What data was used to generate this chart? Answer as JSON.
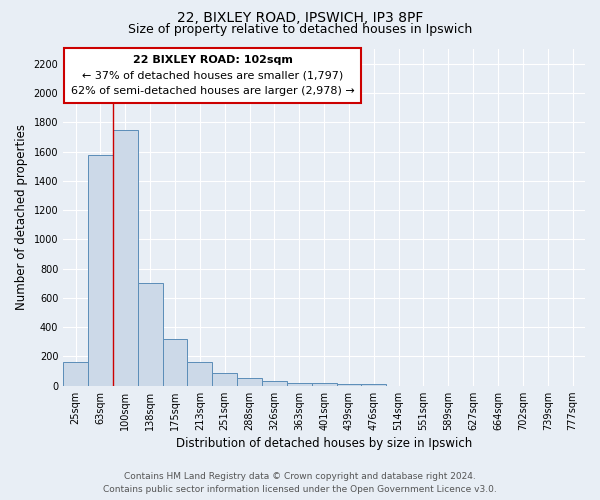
{
  "title_line1": "22, BIXLEY ROAD, IPSWICH, IP3 8PF",
  "title_line2": "Size of property relative to detached houses in Ipswich",
  "xlabel": "Distribution of detached houses by size in Ipswich",
  "ylabel": "Number of detached properties",
  "footer_line1": "Contains HM Land Registry data © Crown copyright and database right 2024.",
  "footer_line2": "Contains public sector information licensed under the Open Government Licence v3.0.",
  "bin_labels": [
    "25sqm",
    "63sqm",
    "100sqm",
    "138sqm",
    "175sqm",
    "213sqm",
    "251sqm",
    "288sqm",
    "326sqm",
    "363sqm",
    "401sqm",
    "439sqm",
    "476sqm",
    "514sqm",
    "551sqm",
    "589sqm",
    "627sqm",
    "664sqm",
    "702sqm",
    "739sqm",
    "777sqm"
  ],
  "bar_values": [
    160,
    1580,
    1750,
    700,
    320,
    160,
    85,
    50,
    30,
    20,
    15,
    10,
    10,
    0,
    0,
    0,
    0,
    0,
    0,
    0,
    0
  ],
  "bar_color": "#ccd9e8",
  "bar_edge_color": "#5b8db8",
  "vline_x_index": 2,
  "vline_color": "#cc0000",
  "annotation_line1": "22 BIXLEY ROAD: 102sqm",
  "annotation_line2": "← 37% of detached houses are smaller (1,797)",
  "annotation_line3": "62% of semi-detached houses are larger (2,978) →",
  "ylim": [
    0,
    2300
  ],
  "yticks": [
    0,
    200,
    400,
    600,
    800,
    1000,
    1200,
    1400,
    1600,
    1800,
    2000,
    2200
  ],
  "background_color": "#e8eef5",
  "plot_bg_color": "#e8eef5",
  "grid_color": "#ffffff",
  "title_fontsize": 10,
  "subtitle_fontsize": 9,
  "axis_label_fontsize": 8.5,
  "tick_fontsize": 7,
  "annotation_fontsize": 8,
  "footer_fontsize": 6.5
}
